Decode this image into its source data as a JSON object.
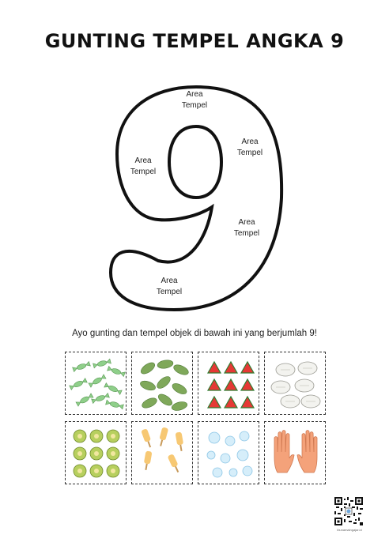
{
  "title": "GUNTING TEMPEL ANGKA 9",
  "area_labels": [
    {
      "line1": "Area",
      "line2": "Tempel"
    },
    {
      "line1": "Area",
      "line2": "Tempel"
    },
    {
      "line1": "Area",
      "line2": "Tempel"
    },
    {
      "line1": "Area",
      "line2": "Tempel"
    },
    {
      "line1": "Area",
      "line2": "Tempel"
    }
  ],
  "instruction": "Ayo gunting dan tempel objek di bawah ini yang berjumlah 9!",
  "cards": [
    {
      "item": "candy"
    },
    {
      "item": "leaf"
    },
    {
      "item": "watermelon-slice"
    },
    {
      "item": "steamed-bun"
    },
    {
      "item": "durian"
    },
    {
      "item": "popsicle"
    },
    {
      "item": "bubble"
    },
    {
      "item": "hand"
    }
  ],
  "footer": {
    "site": "ibunamaingajar.id"
  }
}
